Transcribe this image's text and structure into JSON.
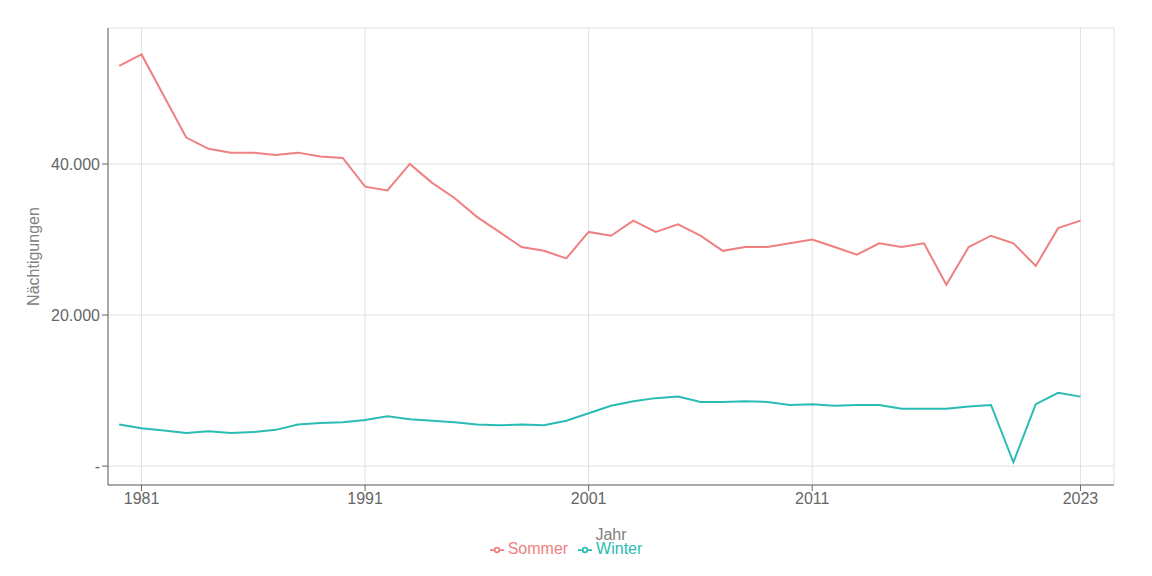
{
  "chart_data": {
    "type": "line",
    "xlabel": "Jahr",
    "ylabel": "Nächtigungen",
    "x": [
      1980,
      1981,
      1982,
      1983,
      1984,
      1985,
      1986,
      1987,
      1988,
      1989,
      1990,
      1991,
      1992,
      1993,
      1994,
      1995,
      1996,
      1997,
      1998,
      1999,
      2000,
      2001,
      2002,
      2003,
      2004,
      2005,
      2006,
      2007,
      2008,
      2009,
      2010,
      2011,
      2012,
      2013,
      2014,
      2015,
      2016,
      2017,
      2018,
      2019,
      2020,
      2021,
      2022,
      2023
    ],
    "series": [
      {
        "name": "Sommer",
        "color": "#F08080",
        "values": [
          53000,
          54500,
          49000,
          43500,
          42000,
          41500,
          41500,
          41200,
          41500,
          41000,
          40800,
          37000,
          36500,
          40000,
          37500,
          35500,
          33000,
          31000,
          29000,
          28500,
          27500,
          31000,
          30500,
          32500,
          31000,
          32000,
          30500,
          28500,
          29000,
          29000,
          29500,
          30000,
          29000,
          28000,
          29500,
          29000,
          29500,
          24000,
          29000,
          30500,
          29500,
          26500,
          31500,
          32500
        ]
      },
      {
        "name": "Winter",
        "color": "#2ABCB4",
        "values": [
          5500,
          5000,
          4700,
          4400,
          4600,
          4400,
          4500,
          4800,
          5500,
          5700,
          5800,
          6100,
          6600,
          6200,
          6000,
          5800,
          5500,
          5400,
          5500,
          5400,
          6000,
          7000,
          8000,
          8600,
          9000,
          9200,
          8500,
          8500,
          8600,
          8500,
          8100,
          8200,
          8000,
          8100,
          8100,
          7600,
          7600,
          7600,
          7900,
          8100,
          500,
          8200,
          9700,
          9200
        ]
      }
    ],
    "xlim": [
      1979.5,
      2024.5
    ],
    "xticks": [
      1981,
      1991,
      2001,
      2011,
      2023
    ],
    "ylim": [
      -2500,
      58000
    ],
    "yticks": [
      {
        "value": 0,
        "label": "-"
      },
      {
        "value": 20000,
        "label": "20.000"
      },
      {
        "value": 40000,
        "label": "40.000"
      }
    ],
    "grid": true,
    "legend": "bottom"
  }
}
